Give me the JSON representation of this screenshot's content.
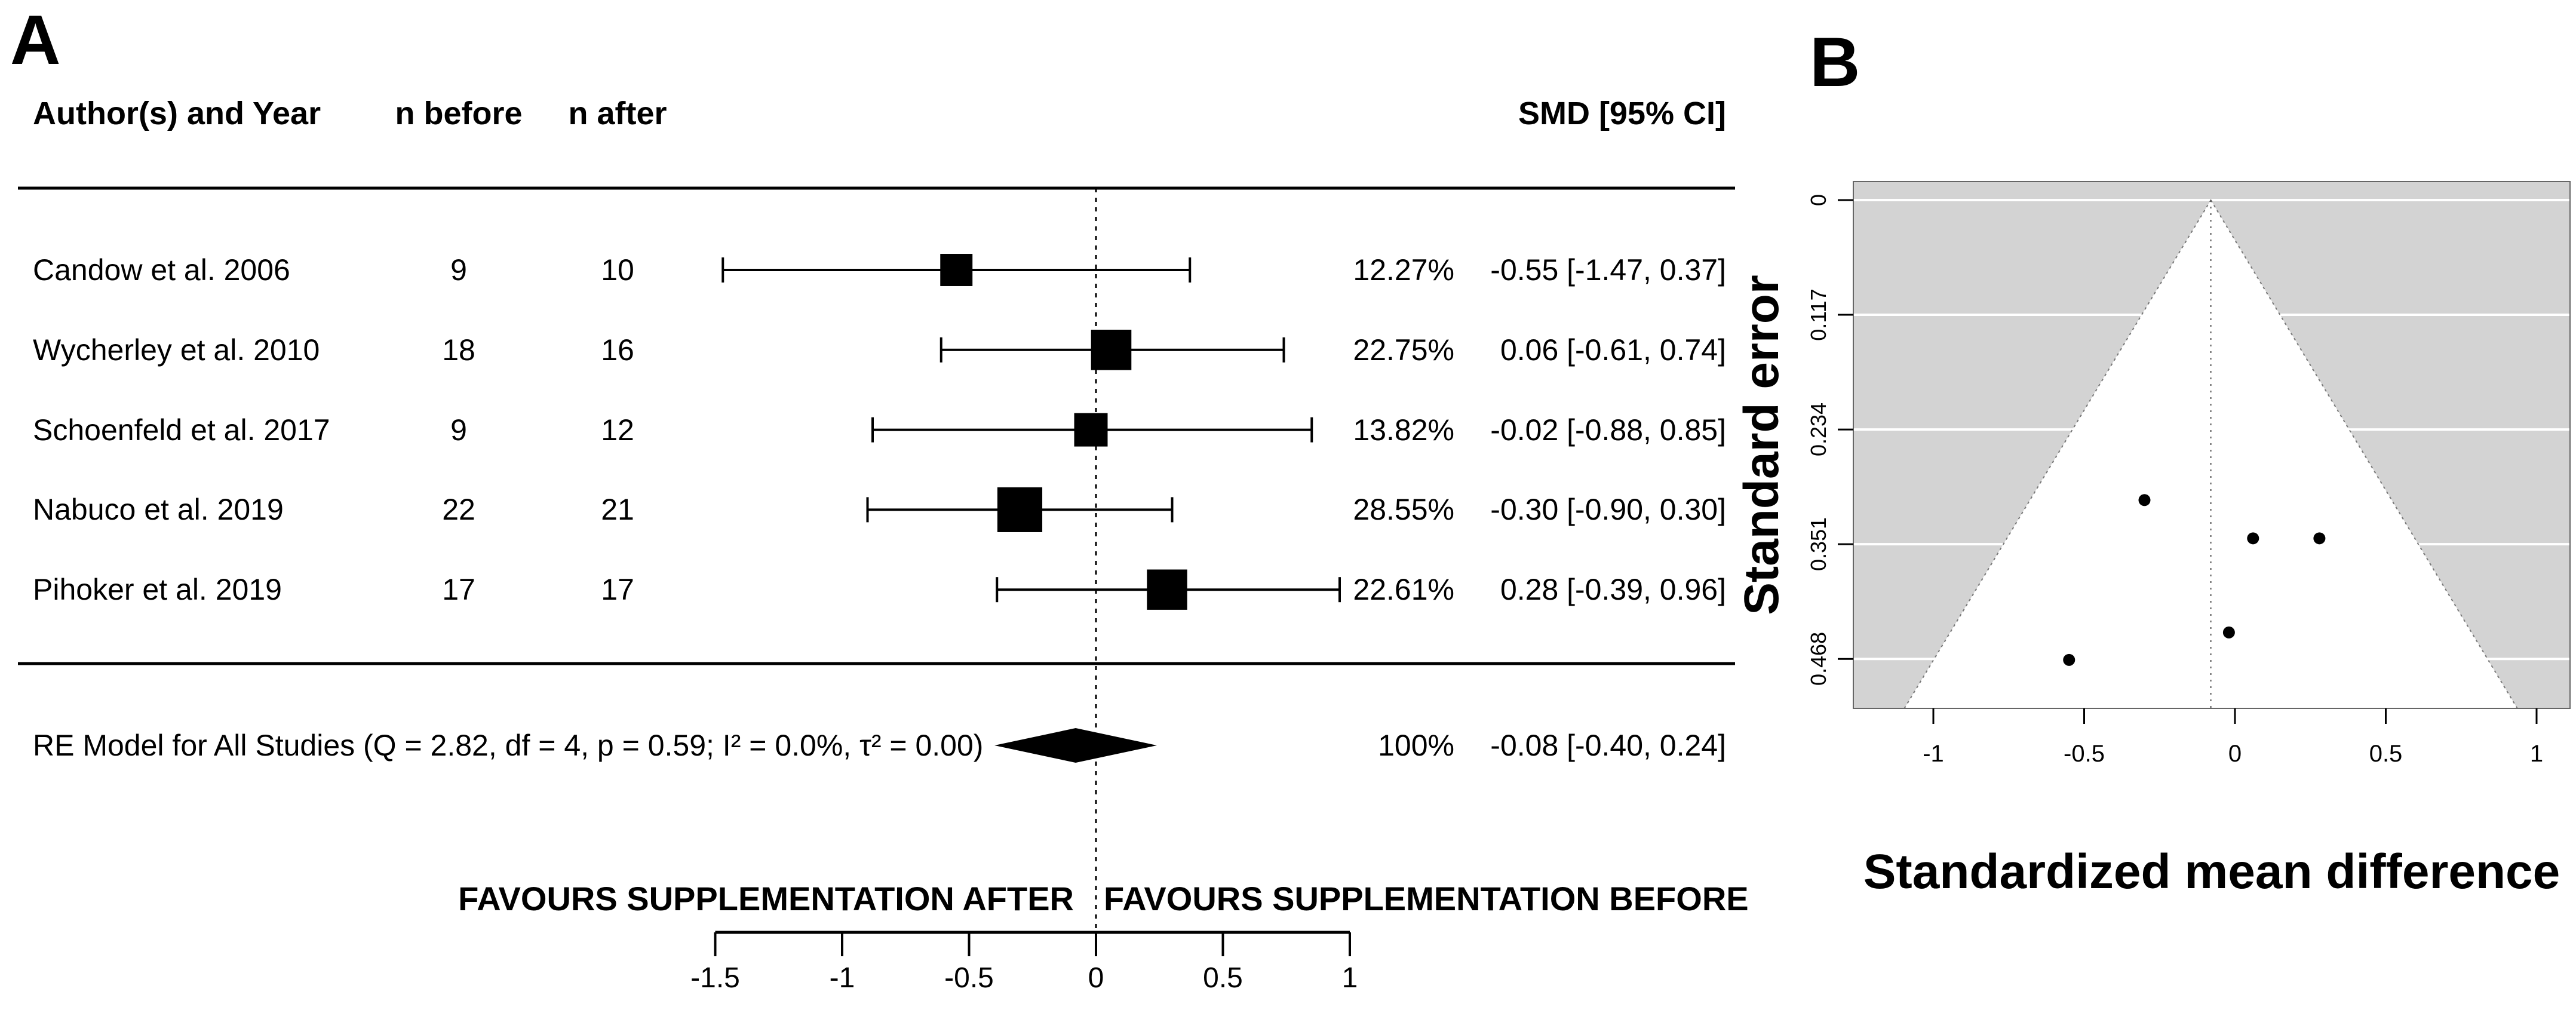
{
  "panel_a": {
    "label": "A",
    "headers": {
      "author": "Author(s) and Year",
      "n_before": "n before",
      "n_after": "n after",
      "smd": "SMD [95% CI]"
    },
    "favours_left": "FAVOURS SUPPLEMENTATION AFTER",
    "favours_right": "FAVOURS SUPPLEMENTATION BEFORE",
    "axis_tick_labels": [
      "-1.5",
      "-1",
      "-0.5",
      "0",
      "0.5",
      "1"
    ]
  },
  "panel_b": {
    "label": "B",
    "ylabel": "Standard error",
    "xlabel": "Standardized mean difference",
    "y_tick_labels": [
      "0",
      "0.117",
      "0.234",
      "0.351",
      "0.468"
    ],
    "x_tick_labels": [
      "-1",
      "-0.5",
      "0",
      "0.5",
      "1"
    ]
  },
  "chart_data": [
    {
      "type": "forest",
      "panel": "A",
      "xlim": [
        -1.5,
        1
      ],
      "x_ticks": [
        -1.5,
        -1,
        -0.5,
        0,
        0.5,
        1
      ],
      "zero_line": 0,
      "studies": [
        {
          "label": "Candow et al. 2006",
          "n_before": "9",
          "n_after": "10",
          "weight": "12.27%",
          "weight_pct": 12.27,
          "smd": -0.55,
          "ci_low": -1.47,
          "ci_high": 0.37,
          "smd_ci": "-0.55 [-1.47, 0.37]"
        },
        {
          "label": "Wycherley et al. 2010",
          "n_before": "18",
          "n_after": "16",
          "weight": "22.75%",
          "weight_pct": 22.75,
          "smd": 0.06,
          "ci_low": -0.61,
          "ci_high": 0.74,
          "smd_ci": "0.06 [-0.61, 0.74]"
        },
        {
          "label": "Schoenfeld et al. 2017",
          "n_before": "9",
          "n_after": "12",
          "weight": "13.82%",
          "weight_pct": 13.82,
          "smd": -0.02,
          "ci_low": -0.88,
          "ci_high": 0.85,
          "smd_ci": "-0.02 [-0.88, 0.85]"
        },
        {
          "label": "Nabuco et al. 2019",
          "n_before": "22",
          "n_after": "21",
          "weight": "28.55%",
          "weight_pct": 28.55,
          "smd": -0.3,
          "ci_low": -0.9,
          "ci_high": 0.3,
          "smd_ci": "-0.30 [-0.90, 0.30]"
        },
        {
          "label": "Pihoker et al. 2019",
          "n_before": "17",
          "n_after": "17",
          "weight": "22.61%",
          "weight_pct": 22.61,
          "smd": 0.28,
          "ci_low": -0.39,
          "ci_high": 0.96,
          "smd_ci": "0.28 [-0.39, 0.96]"
        }
      ],
      "summary": {
        "label": "RE Model for All Studies (Q = 2.82, df = 4, p = 0.59; I² = 0.0%, τ² = 0.00)",
        "weight": "100%",
        "weight_pct": 100,
        "smd": -0.08,
        "ci_low": -0.4,
        "ci_high": 0.24,
        "smd_ci": "-0.08 [-0.40, 0.24]"
      }
    },
    {
      "type": "scatter",
      "panel": "B",
      "subtype": "funnel",
      "xlabel": "Standardized mean difference",
      "ylabel": "Standard error",
      "x_ticks": [
        -1,
        -0.5,
        0,
        0.5,
        1
      ],
      "y_ticks": [
        0,
        0.117,
        0.234,
        0.351,
        0.468
      ],
      "xlim": [
        -1.27,
        1.11
      ],
      "ylim": [
        0,
        0.519
      ],
      "center": -0.08,
      "ci_level": 0.95,
      "points": [
        {
          "study": "Candow et al. 2006",
          "x": -0.55,
          "se": 0.469
        },
        {
          "study": "Wycherley et al. 2010",
          "x": 0.06,
          "se": 0.345
        },
        {
          "study": "Schoenfeld et al. 2017",
          "x": -0.02,
          "se": 0.441
        },
        {
          "study": "Nabuco et al. 2019",
          "x": -0.3,
          "se": 0.306
        },
        {
          "study": "Pihoker et al. 2019",
          "x": 0.28,
          "se": 0.345
        }
      ],
      "colors": {
        "region_bg": "#d3d3d3",
        "funnel_fill": "#ffffff",
        "point": "#000000",
        "grid": "#ffffff"
      }
    }
  ]
}
